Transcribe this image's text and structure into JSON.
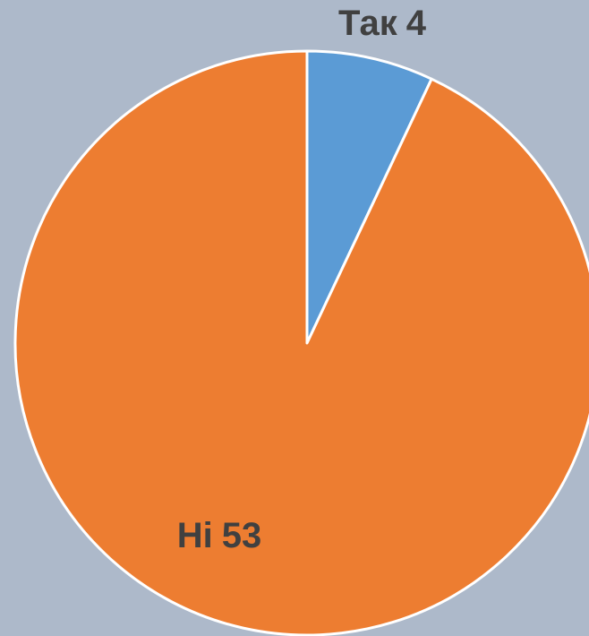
{
  "chart_data": {
    "type": "pie",
    "categories": [
      "Так",
      "Ні"
    ],
    "values": [
      4,
      53
    ],
    "colors": [
      "#5b9bd5",
      "#ed7d31"
    ]
  }
}
